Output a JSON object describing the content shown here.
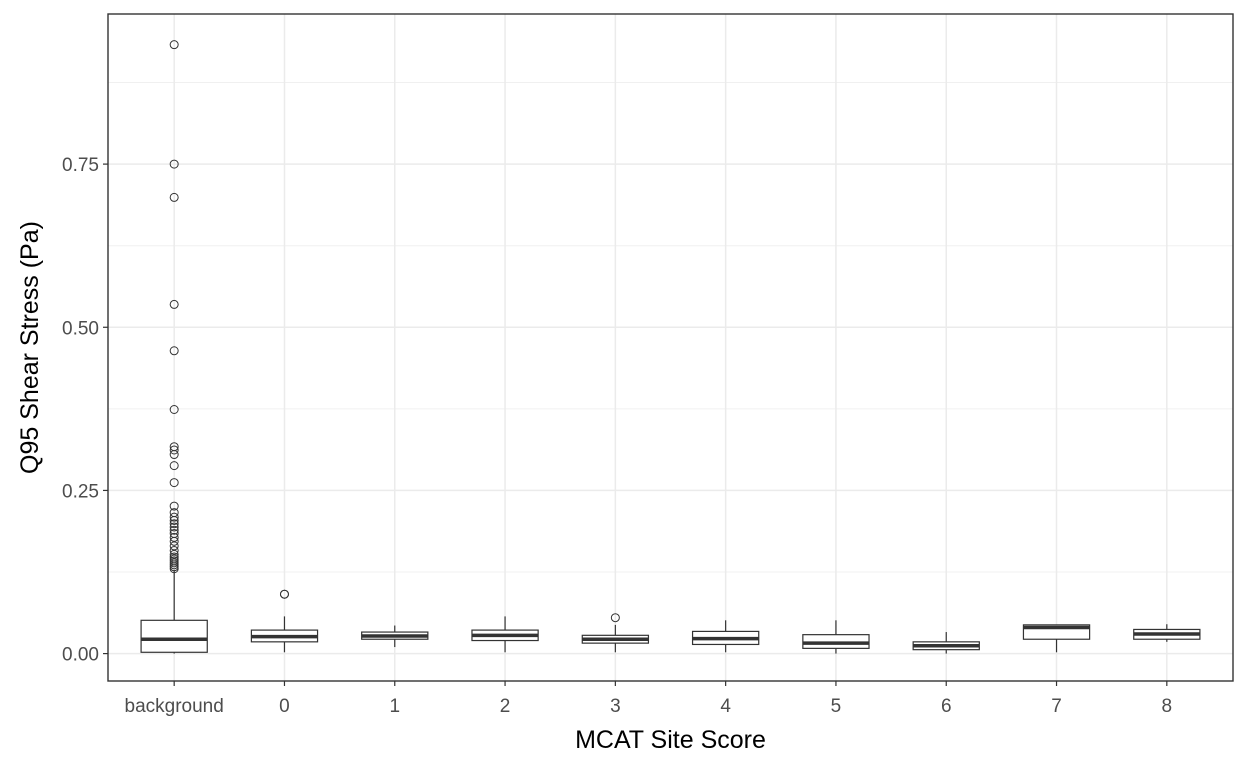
{
  "chart_data": {
    "type": "boxplot",
    "xlabel": "MCAT Site Score",
    "ylabel": "Q95 Shear Stress (Pa)",
    "ylim": [
      -0.042,
      0.98
    ],
    "y_ticks": [
      0.0,
      0.25,
      0.5,
      0.75
    ],
    "y_tick_labels": [
      "0.00",
      "0.25",
      "0.50",
      "0.75"
    ],
    "grid": true,
    "theme": "bw",
    "categories": [
      "background",
      "0",
      "1",
      "2",
      "3",
      "4",
      "5",
      "6",
      "7",
      "8"
    ],
    "boxes": [
      {
        "category": "background",
        "min": 0.0,
        "q1": 0.002,
        "median": 0.022,
        "q3": 0.051,
        "max": 0.128,
        "outliers": [
          0.933,
          0.75,
          0.699,
          0.535,
          0.464,
          0.374,
          0.317,
          0.312,
          0.305,
          0.288,
          0.262,
          0.226,
          0.216,
          0.209,
          0.204,
          0.199,
          0.194,
          0.189,
          0.184,
          0.178,
          0.172,
          0.165,
          0.158,
          0.152,
          0.148,
          0.145,
          0.142,
          0.139,
          0.136,
          0.133,
          0.13
        ]
      },
      {
        "category": "0",
        "min": 0.002,
        "q1": 0.018,
        "median": 0.026,
        "q3": 0.036,
        "max": 0.057,
        "outliers": [
          0.091,
          0.091
        ]
      },
      {
        "category": "1",
        "min": 0.01,
        "q1": 0.022,
        "median": 0.027,
        "q3": 0.033,
        "max": 0.043,
        "outliers": []
      },
      {
        "category": "2",
        "min": 0.002,
        "q1": 0.02,
        "median": 0.028,
        "q3": 0.036,
        "max": 0.057,
        "outliers": []
      },
      {
        "category": "3",
        "min": 0.002,
        "q1": 0.016,
        "median": 0.022,
        "q3": 0.028,
        "max": 0.044,
        "outliers": [
          0.055
        ]
      },
      {
        "category": "4",
        "min": 0.002,
        "q1": 0.014,
        "median": 0.023,
        "q3": 0.034,
        "max": 0.051,
        "outliers": []
      },
      {
        "category": "5",
        "min": 0.0,
        "q1": 0.008,
        "median": 0.016,
        "q3": 0.029,
        "max": 0.051,
        "outliers": []
      },
      {
        "category": "6",
        "min": 0.0,
        "q1": 0.006,
        "median": 0.012,
        "q3": 0.018,
        "max": 0.033,
        "outliers": []
      },
      {
        "category": "7",
        "min": 0.002,
        "q1": 0.022,
        "median": 0.04,
        "q3": 0.044,
        "max": 0.044,
        "outliers": []
      },
      {
        "category": "8",
        "min": 0.018,
        "q1": 0.022,
        "median": 0.03,
        "q3": 0.037,
        "max": 0.045,
        "outliers": []
      }
    ]
  }
}
